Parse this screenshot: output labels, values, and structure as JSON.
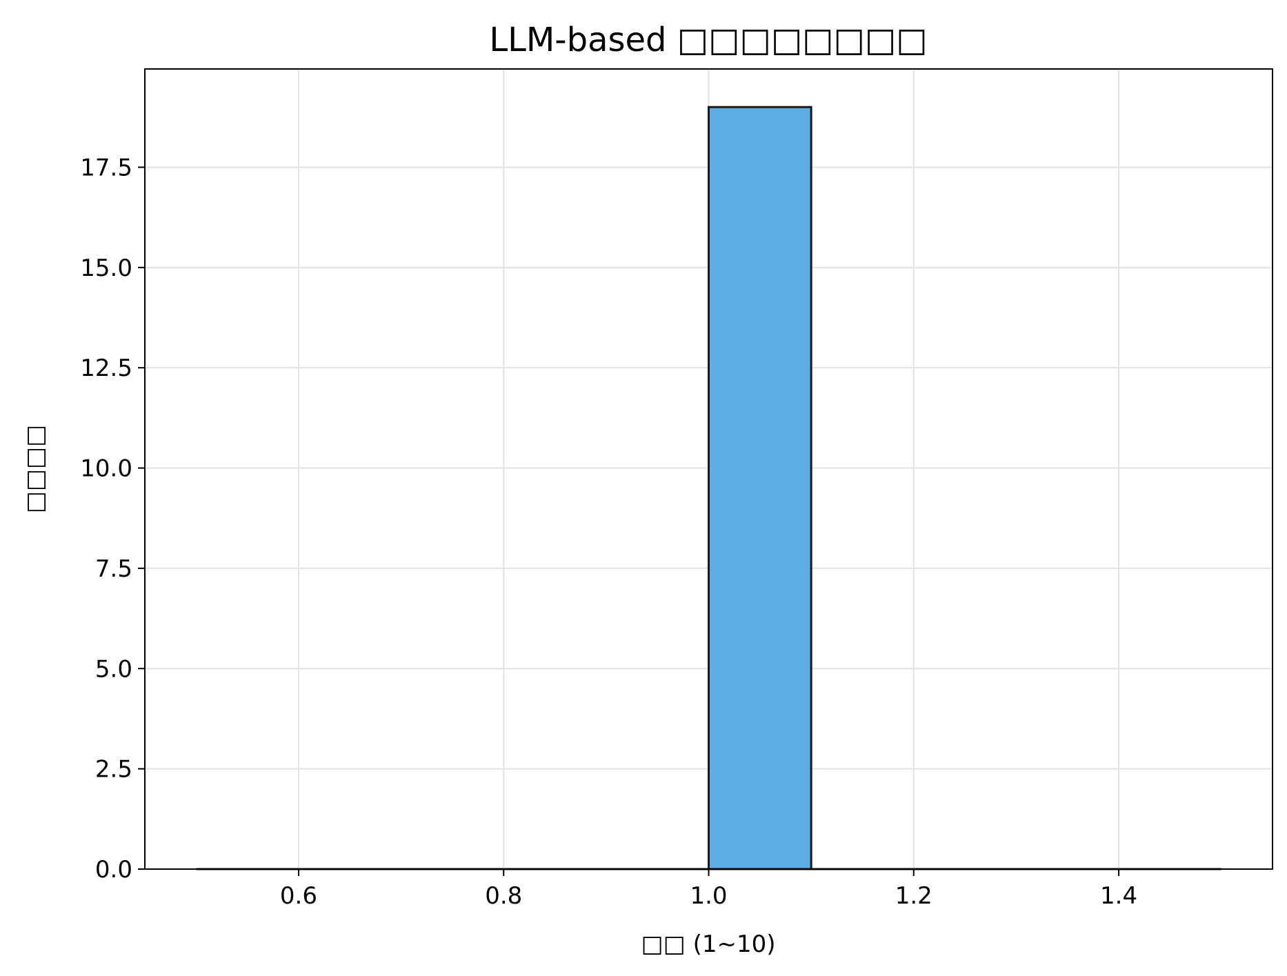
{
  "chart_data": {
    "type": "bar",
    "title": "LLM-based □□□□□□□□",
    "xlabel": "□□ (1~10)",
    "ylabel": "□□□□",
    "xlim": [
      0.45,
      1.55
    ],
    "ylim": [
      0,
      19.95
    ],
    "xticks": [
      "0.6",
      "0.8",
      "1.0",
      "1.2",
      "1.4"
    ],
    "yticks": [
      "0.0",
      "2.5",
      "5.0",
      "7.5",
      "10.0",
      "12.5",
      "15.0",
      "17.5"
    ],
    "grid": true,
    "bins": [
      {
        "start": 0.5,
        "end": 0.6,
        "count": 0
      },
      {
        "start": 0.6,
        "end": 0.7,
        "count": 0
      },
      {
        "start": 0.7,
        "end": 0.8,
        "count": 0
      },
      {
        "start": 0.8,
        "end": 0.9,
        "count": 0
      },
      {
        "start": 0.9,
        "end": 1.0,
        "count": 0
      },
      {
        "start": 1.0,
        "end": 1.1,
        "count": 19
      },
      {
        "start": 1.1,
        "end": 1.2,
        "count": 0
      },
      {
        "start": 1.2,
        "end": 1.3,
        "count": 0
      },
      {
        "start": 1.3,
        "end": 1.4,
        "count": 0
      },
      {
        "start": 1.4,
        "end": 1.5,
        "count": 0
      }
    ],
    "colors": {
      "bar": "#5dade2",
      "edge": "#1a1a1a",
      "grid": "#e3e3e3",
      "axes": "#000000"
    }
  }
}
